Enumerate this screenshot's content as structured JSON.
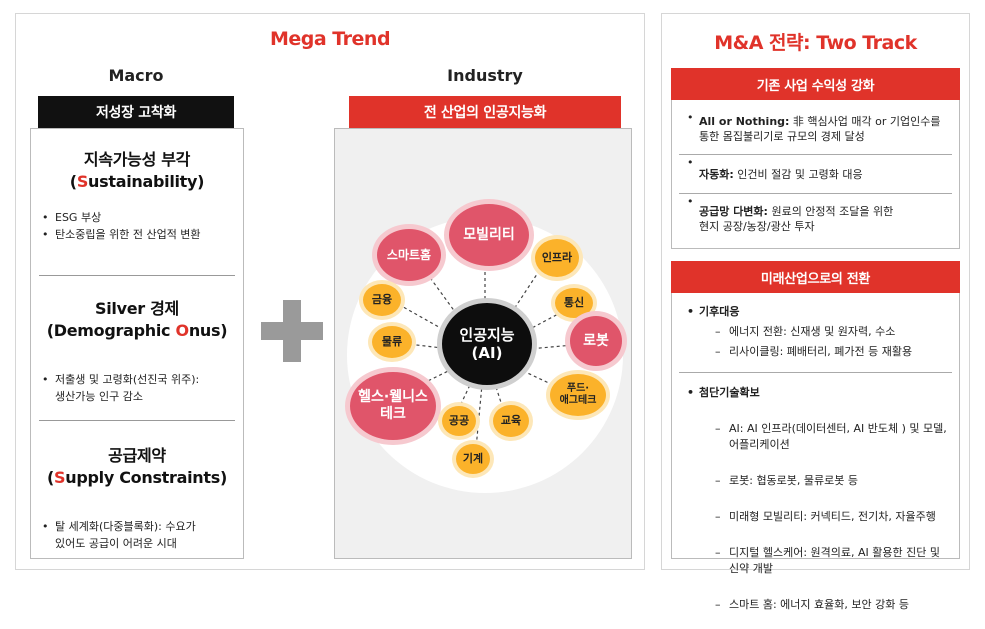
{
  "left_panel": {
    "title": "Mega Trend",
    "macro": {
      "heading": "Macro",
      "tab": "저성장 고착화",
      "sections": [
        {
          "title_line1": "지속가능성 부각",
          "title_open": "(",
          "title_hl": "S",
          "title_rest": "ustainability)",
          "bullets": [
            "ESG 부상",
            "탄소중립을 위한 전 산업적 변환"
          ]
        },
        {
          "title_line1": "Silver 경제",
          "title_open": "(Demographic ",
          "title_hl": "O",
          "title_rest": "nus)",
          "bullets": [
            "저출생 및 고령화(선진국 위주):\n생산가능 인구 감소"
          ]
        },
        {
          "title_line1": "공급제약",
          "title_open": "(",
          "title_hl": "S",
          "title_rest": "upply Constraints)",
          "bullets": [
            "탈 세계화(다중블록화): 수요가\n있어도 공급이 어려운 시대"
          ]
        }
      ]
    },
    "industry": {
      "heading": "Industry",
      "tab": "전 산업의 인공지능화",
      "center": "인공지능\n(AI)",
      "nodes": {
        "mobility": "모빌리티",
        "smarthome": "스마트홈",
        "infra": "인프라",
        "finance": "금융",
        "telecom": "통신",
        "robot": "로봇",
        "logistics": "물류",
        "health": "헬스·웰니스\n테크",
        "foodtech": "푸드·\n애그테크",
        "public": "공공",
        "education": "교육",
        "machine": "기계"
      }
    }
  },
  "right_panel": {
    "title": "M&A 전략: Two Track",
    "track1": {
      "tab": "기존 사업 수익성 강화",
      "items": [
        {
          "bold": "All or Nothing:",
          "text": " 非 핵심사업 매각 or 기업인수를\n통한 몸집불리기로 규모의 경제 달성"
        },
        {
          "bold": "자동화:",
          "text": " 인건비 절감 및 고령화 대응"
        },
        {
          "bold": "공급망 다변화:",
          "text": " 원료의 안정적 조달을 위한\n현지 공장/농장/광산 투자"
        }
      ]
    },
    "track2": {
      "tab": "미래산업으로의 전환",
      "groups": [
        {
          "title": "기후대응",
          "items": [
            "에너지 전환: 신재생 및 원자력, 수소",
            "리사이클링: 폐배터리, 폐가전 등 재활용"
          ]
        },
        {
          "title": "첨단기술확보",
          "items": [
            "AI: AI 인프라(데이터센터, AI 반도체 ) 및 모델,\n어플리케이션",
            "로봇: 협동로봇, 물류로봇 등",
            "미래형 모빌리티: 커넥티드, 전기차, 자율주행",
            "디지털 헬스케어: 원격의료, AI 활용한 진단 및\n신약 개발",
            "스마트 홈: 에너지 효율화, 보안 강화 등"
          ]
        }
      ]
    }
  }
}
